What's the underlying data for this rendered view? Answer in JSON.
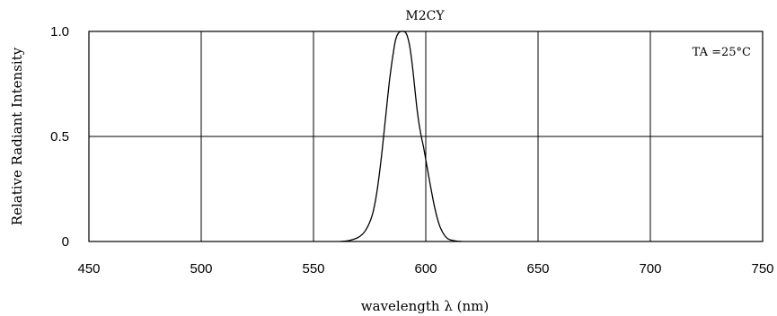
{
  "chart_data": {
    "type": "line",
    "title": "M2CY",
    "xlabel": "wavelength  λ (nm)",
    "ylabel": "Relative  Radiant  Intensity",
    "annotation": "TA =25°C",
    "xlim": [
      450,
      750
    ],
    "ylim": [
      0,
      1.0
    ],
    "x_ticks": [
      450,
      500,
      550,
      600,
      650,
      700,
      750
    ],
    "x_tick_labels": [
      "450",
      "500",
      "550",
      "600",
      "650",
      "700",
      "750"
    ],
    "y_ticks": [
      0,
      0.5,
      1.0
    ],
    "y_tick_labels": [
      "0",
      "0.5",
      "1.0"
    ],
    "grid": true,
    "series": [
      {
        "x": [
          562,
          566,
          570,
          573,
          576,
          578,
          580,
          582,
          584,
          586,
          587,
          588,
          589,
          590,
          591,
          592,
          593,
          594,
          595,
          596,
          597,
          598,
          599,
          600,
          602,
          604,
          606,
          608,
          610,
          613,
          616
        ],
        "values": [
          0.0,
          0.005,
          0.02,
          0.05,
          0.12,
          0.22,
          0.38,
          0.58,
          0.78,
          0.93,
          0.975,
          0.995,
          1.0,
          1.0,
          0.995,
          0.97,
          0.92,
          0.84,
          0.74,
          0.64,
          0.56,
          0.5,
          0.45,
          0.39,
          0.27,
          0.16,
          0.08,
          0.035,
          0.012,
          0.003,
          0.0
        ]
      }
    ]
  }
}
